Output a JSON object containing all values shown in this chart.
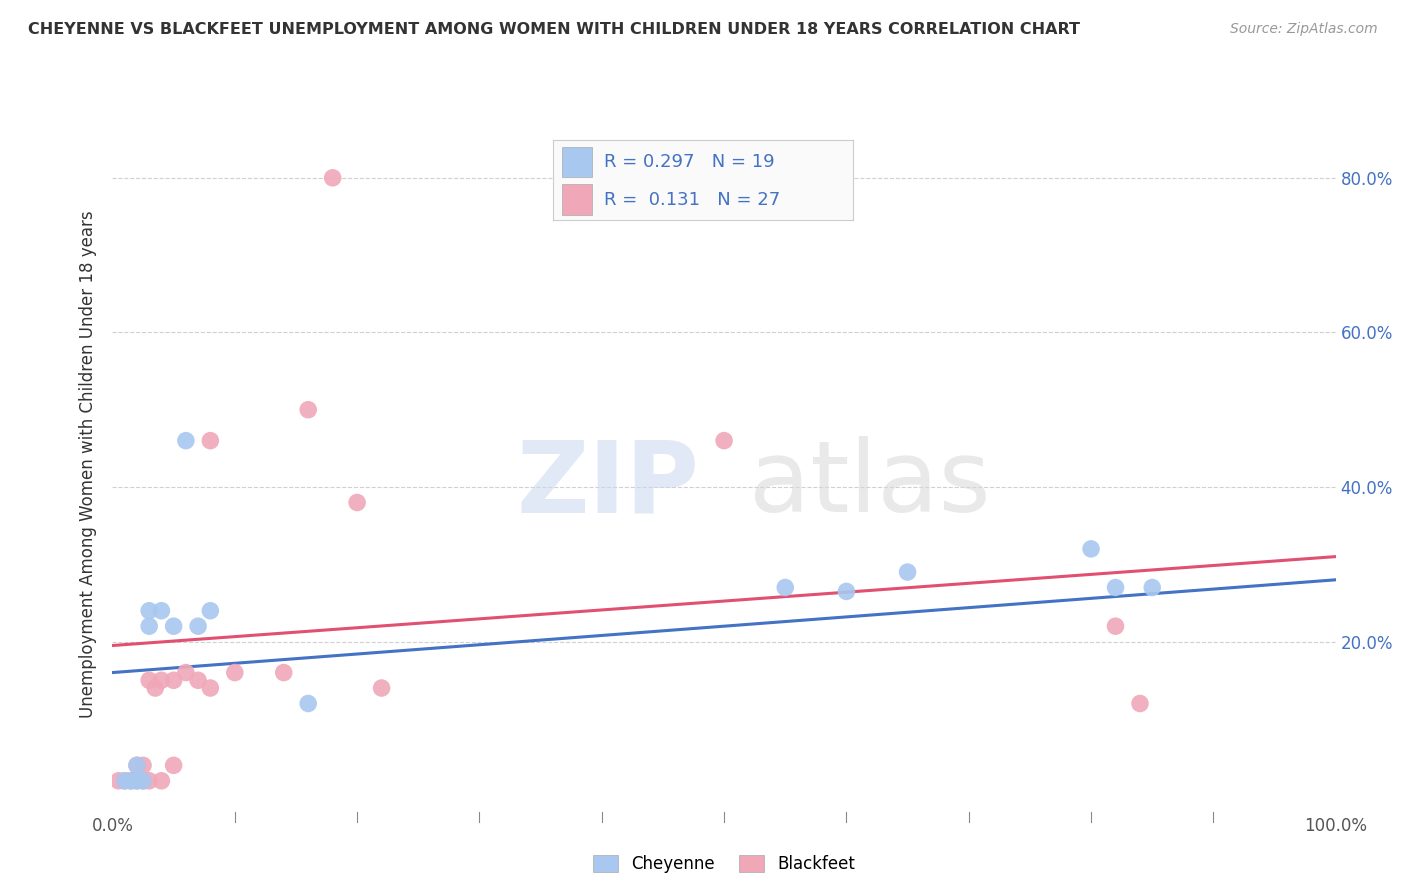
{
  "title": "CHEYENNE VS BLACKFEET UNEMPLOYMENT AMONG WOMEN WITH CHILDREN UNDER 18 YEARS CORRELATION CHART",
  "source": "Source: ZipAtlas.com",
  "ylabel": "Unemployment Among Women with Children Under 18 years",
  "xlim": [
    0.0,
    1.0
  ],
  "ylim": [
    -0.02,
    0.88
  ],
  "xticks": [
    0.0,
    1.0
  ],
  "xticklabels": [
    "0.0%",
    "100.0%"
  ],
  "yticks": [
    0.2,
    0.4,
    0.6,
    0.8
  ],
  "yticklabels": [
    "20.0%",
    "40.0%",
    "60.0%",
    "80.0%"
  ],
  "cheyenne_color": "#a8c8f0",
  "blackfeet_color": "#f0a8b8",
  "cheyenne_R": 0.297,
  "cheyenne_N": 19,
  "blackfeet_R": 0.131,
  "blackfeet_N": 27,
  "cheyenne_x": [
    0.01,
    0.015,
    0.02,
    0.02,
    0.025,
    0.03,
    0.03,
    0.04,
    0.05,
    0.06,
    0.07,
    0.08,
    0.16,
    0.55,
    0.6,
    0.65,
    0.8,
    0.82,
    0.85
  ],
  "cheyenne_y": [
    0.02,
    0.02,
    0.02,
    0.04,
    0.02,
    0.22,
    0.24,
    0.24,
    0.22,
    0.46,
    0.22,
    0.24,
    0.12,
    0.27,
    0.265,
    0.29,
    0.32,
    0.27,
    0.27
  ],
  "blackfeet_x": [
    0.005,
    0.01,
    0.015,
    0.02,
    0.02,
    0.025,
    0.025,
    0.03,
    0.03,
    0.035,
    0.04,
    0.04,
    0.05,
    0.05,
    0.06,
    0.07,
    0.08,
    0.08,
    0.1,
    0.14,
    0.16,
    0.18,
    0.2,
    0.22,
    0.5,
    0.82,
    0.84
  ],
  "blackfeet_y": [
    0.02,
    0.02,
    0.02,
    0.02,
    0.04,
    0.02,
    0.04,
    0.02,
    0.15,
    0.14,
    0.02,
    0.15,
    0.04,
    0.15,
    0.16,
    0.15,
    0.14,
    0.46,
    0.16,
    0.16,
    0.5,
    0.8,
    0.38,
    0.14,
    0.46,
    0.22,
    0.12
  ],
  "cheyenne_trend_start": 0.16,
  "cheyenne_trend_end": 0.28,
  "blackfeet_trend_start": 0.195,
  "blackfeet_trend_end": 0.31,
  "grid_color": "#d0d0d0",
  "background_color": "#ffffff",
  "watermark_zip": "ZIP",
  "watermark_atlas": "atlas",
  "cheyenne_line_color": "#4472c4",
  "blackfeet_line_color": "#e05070"
}
